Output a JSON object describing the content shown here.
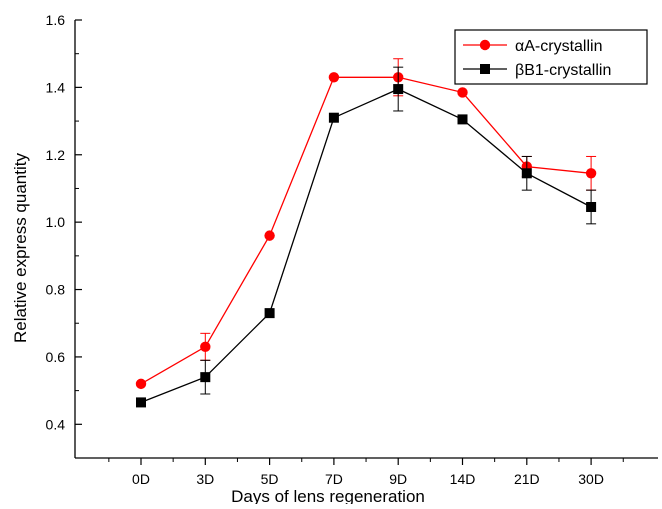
{
  "chart_data": {
    "type": "line",
    "title": "",
    "xlabel": "Days of lens regeneration",
    "ylabel": "Relative express quantity",
    "categories": [
      "0D",
      "3D",
      "5D",
      "7D",
      "9D",
      "14D",
      "21D",
      "30D"
    ],
    "ylim": [
      0.3,
      1.6
    ],
    "yticks": [
      0.4,
      0.6,
      0.8,
      1.0,
      1.2,
      1.4,
      1.6
    ],
    "ytick_labels": [
      "0.4",
      "0.6",
      "0.8",
      "1.0",
      "1.2",
      "1.4",
      "1.6"
    ],
    "grid": false,
    "legend_position": "top-right",
    "series": [
      {
        "name": "αA-crystallin",
        "color": "#ff0000",
        "marker": "circle",
        "values": [
          0.52,
          0.63,
          0.96,
          1.43,
          1.43,
          1.385,
          1.165,
          1.145
        ],
        "errors": [
          0,
          0.04,
          0,
          0,
          0.055,
          0,
          0.03,
          0.05
        ]
      },
      {
        "name": "βB1-crystallin",
        "color": "#000000",
        "marker": "square",
        "values": [
          0.465,
          0.54,
          0.73,
          1.31,
          1.395,
          1.305,
          1.145,
          1.045
        ],
        "errors": [
          0,
          0.05,
          0,
          0,
          0.065,
          0,
          0.05,
          0.05
        ]
      }
    ]
  }
}
